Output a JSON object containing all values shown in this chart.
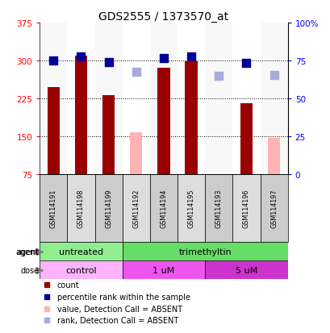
{
  "title": "GDS2555 / 1373570_at",
  "samples": [
    "GSM114191",
    "GSM114198",
    "GSM114199",
    "GSM114192",
    "GSM114194",
    "GSM114195",
    "GSM114193",
    "GSM114196",
    "GSM114197"
  ],
  "count_values": [
    248,
    310,
    232,
    null,
    285,
    298,
    null,
    215,
    null
  ],
  "count_absent": [
    null,
    null,
    null,
    158,
    null,
    null,
    null,
    null,
    148
  ],
  "rank_values": [
    75.2,
    77.5,
    73.8,
    null,
    76.5,
    77.8,
    null,
    73.2,
    null
  ],
  "rank_absent": [
    null,
    null,
    null,
    67.5,
    null,
    null,
    65.0,
    null,
    65.5
  ],
  "ylim_left": [
    75,
    375
  ],
  "ylim_right": [
    0,
    100
  ],
  "yticks_left": [
    75,
    150,
    225,
    300,
    375
  ],
  "yticks_right": [
    0,
    25,
    50,
    75,
    100
  ],
  "ytick_labels_left": [
    "75",
    "150",
    "225",
    "300",
    "375"
  ],
  "ytick_labels_right": [
    "0",
    "25",
    "50",
    "75",
    "100%"
  ],
  "agent_groups": [
    {
      "label": "untreated",
      "start": 0,
      "end": 3,
      "color": "#90ee90"
    },
    {
      "label": "trimethyltin",
      "start": 3,
      "end": 9,
      "color": "#66dd66"
    }
  ],
  "dose_groups": [
    {
      "label": "control",
      "start": 0,
      "end": 3,
      "color": "#ffb3ff"
    },
    {
      "label": "1 uM",
      "start": 3,
      "end": 6,
      "color": "#ee55ee"
    },
    {
      "label": "5 uM",
      "start": 6,
      "end": 9,
      "color": "#cc33cc"
    }
  ],
  "bar_color_present": "#990000",
  "bar_color_absent": "#ffb3b3",
  "dot_color_present": "#000099",
  "dot_color_absent": "#aaaadd",
  "bar_width": 0.45,
  "dot_size": 45,
  "sample_box_colors": [
    "#cccccc",
    "#dddddd"
  ]
}
